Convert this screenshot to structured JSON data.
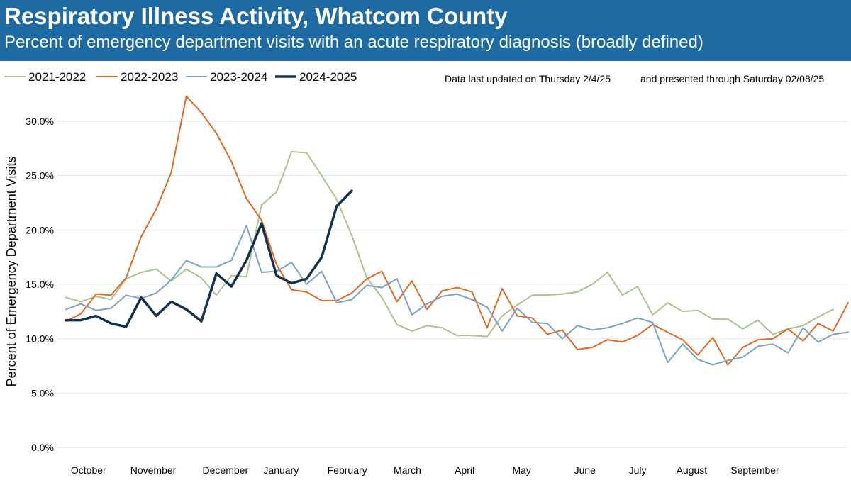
{
  "header": {
    "title": "Respiratory Illness Activity, Whatcom County",
    "subtitle": "Percent of emergency department visits with an acute respiratory diagnosis (broadly defined)"
  },
  "notes": {
    "updated": "Data last updated on Thursday  2/4/25",
    "through": "and presented through Saturday 02/08/25"
  },
  "chart_data": {
    "type": "line",
    "ylabel": "Percent of Emergency Department Visits",
    "ylim": [
      0,
      0.33
    ],
    "yticks": [
      0,
      0.05,
      0.1,
      0.15,
      0.2,
      0.25,
      0.3
    ],
    "ytick_labels": [
      "0.0%",
      "5.0%",
      "10.0%",
      "15.0%",
      "20.0%",
      "25.0%",
      "30.0%"
    ],
    "x_unit": "week of season (week 1 = first week of October)",
    "xlim": [
      1,
      53
    ],
    "month_labels": [
      {
        "label": "October",
        "week": 2.5
      },
      {
        "label": "November",
        "week": 6.8
      },
      {
        "label": "December",
        "week": 11.6
      },
      {
        "label": "January",
        "week": 15.3
      },
      {
        "label": "February",
        "week": 19.7
      },
      {
        "label": "March",
        "week": 23.7
      },
      {
        "label": "April",
        "week": 27.5
      },
      {
        "label": "May",
        "week": 31.3
      },
      {
        "label": "June",
        "week": 35.5
      },
      {
        "label": "July",
        "week": 39.0
      },
      {
        "label": "August",
        "week": 42.6
      },
      {
        "label": "September",
        "week": 46.8
      }
    ],
    "legend_position": "top-left",
    "grid": "horizontal",
    "series": [
      {
        "name": "2021-2022",
        "color": "#a9c48e",
        "width": 2,
        "values": [
          0.138,
          0.134,
          0.139,
          0.136,
          0.155,
          0.161,
          0.164,
          0.153,
          0.164,
          0.156,
          0.14,
          0.158,
          0.157,
          0.223,
          0.235,
          0.272,
          0.271,
          0.25,
          0.228,
          0.195,
          0.156,
          0.138,
          0.113,
          0.107,
          0.112,
          0.11,
          0.103,
          0.103,
          0.102,
          0.121,
          0.131,
          0.14,
          0.14,
          0.141,
          0.143,
          0.15,
          0.161,
          0.14,
          0.148,
          0.122,
          0.133,
          0.125,
          0.126,
          0.118,
          0.118,
          0.109,
          0.117,
          0.104,
          0.109,
          0.112,
          0.12,
          0.127
        ]
      },
      {
        "name": "2022-2023",
        "color": "#e06a24",
        "width": 2,
        "values": [
          0.116,
          0.123,
          0.141,
          0.14,
          0.156,
          0.194,
          0.219,
          0.253,
          0.323,
          0.308,
          0.289,
          0.263,
          0.229,
          0.209,
          0.168,
          0.145,
          0.143,
          0.135,
          0.135,
          0.142,
          0.155,
          0.162,
          0.134,
          0.153,
          0.127,
          0.144,
          0.147,
          0.143,
          0.11,
          0.146,
          0.121,
          0.119,
          0.104,
          0.108,
          0.09,
          0.092,
          0.099,
          0.097,
          0.103,
          0.113,
          0.106,
          0.099,
          0.085,
          0.101,
          0.076,
          0.092,
          0.099,
          0.1,
          0.109,
          0.098,
          0.114,
          0.107,
          0.133
        ]
      },
      {
        "name": "2023-2024",
        "color": "#7ba3c4",
        "width": 2,
        "values": [
          0.127,
          0.132,
          0.126,
          0.128,
          0.14,
          0.137,
          0.142,
          0.154,
          0.172,
          0.166,
          0.166,
          0.172,
          0.204,
          0.161,
          0.162,
          0.17,
          0.15,
          0.162,
          0.133,
          0.136,
          0.149,
          0.147,
          0.155,
          0.122,
          0.132,
          0.139,
          0.141,
          0.136,
          0.129,
          0.107,
          0.128,
          0.115,
          0.114,
          0.1,
          0.112,
          0.108,
          0.11,
          0.114,
          0.119,
          0.115,
          0.078,
          0.095,
          0.081,
          0.076,
          0.08,
          0.083,
          0.093,
          0.095,
          0.087,
          0.11,
          0.097,
          0.104,
          0.106
        ]
      },
      {
        "name": "2024-2025",
        "color": "#14324e",
        "width": 3.5,
        "values": [
          0.117,
          0.117,
          0.121,
          0.114,
          0.111,
          0.138,
          0.121,
          0.134,
          0.127,
          0.116,
          0.16,
          0.148,
          0.172,
          0.206,
          0.158,
          0.151,
          0.155,
          0.175,
          0.222,
          0.236
        ]
      }
    ]
  }
}
